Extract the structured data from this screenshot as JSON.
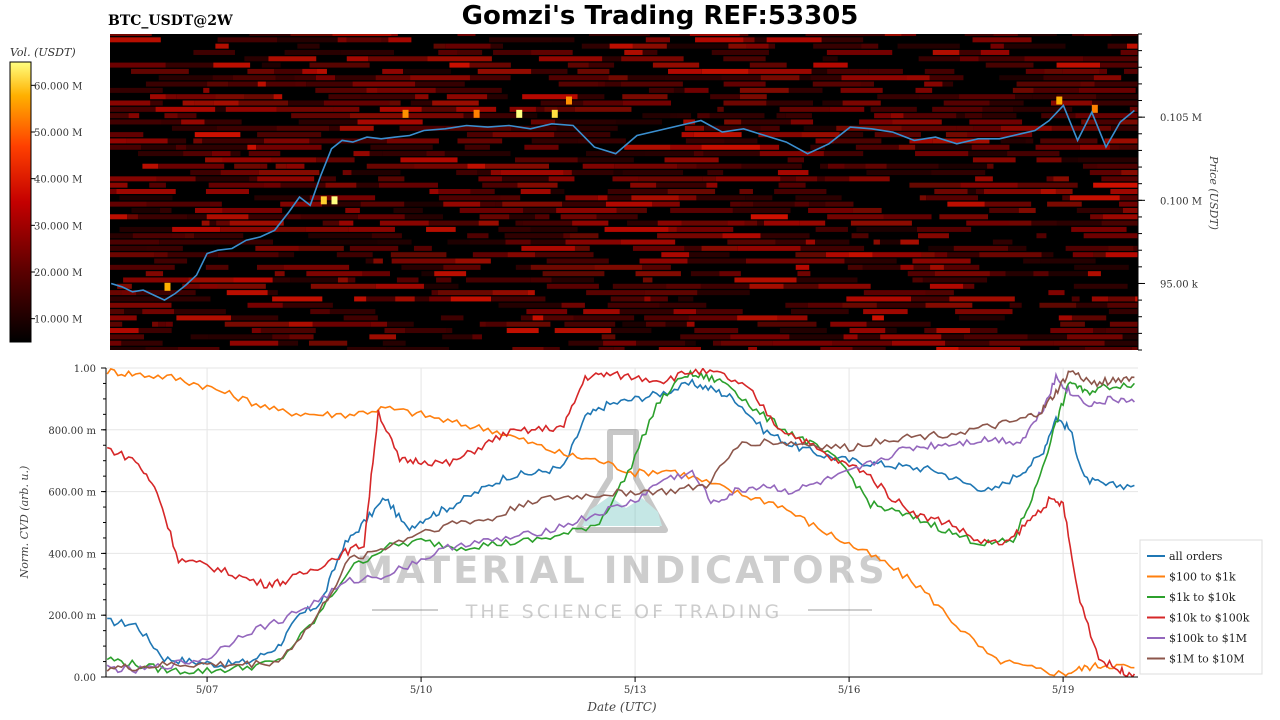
{
  "header": {
    "title": "Gomzi's Trading REF:53305",
    "symbol": "BTC_USDT@2W"
  },
  "watermark": {
    "brand": "MATERIAL INDICATORS",
    "tagline": "THE SCIENCE OF TRADING"
  },
  "colors": {
    "price_line": "#3a8fd0",
    "heatmap_low": "#000000",
    "heatmap_mid": "#c40000",
    "heatmap_high": "#ffff80"
  },
  "chart_data": [
    {
      "type": "heatmap",
      "name": "order-book-heatmap",
      "colorbar_label": "Vol. (USDT)",
      "colorbar_ticks": [
        "10.000 M",
        "20.000 M",
        "30.000 M",
        "40.000 M",
        "50.000 M",
        "60.000 M"
      ],
      "colorbar_tick_values": [
        10,
        20,
        30,
        40,
        50,
        60
      ],
      "colorbar_range": [
        5,
        65
      ],
      "ylabel": "Price (USDT)",
      "y_ticks": [
        "95.00 k",
        "0.100 M",
        "0.105 M"
      ],
      "y_tick_values": [
        95000,
        100000,
        105000
      ],
      "ylim": [
        91000,
        110000
      ],
      "xlim_days": [
        5.583,
        20.05
      ],
      "price_series": {
        "x": [
          5.6,
          5.75,
          5.9,
          6.05,
          6.2,
          6.35,
          6.5,
          6.65,
          6.8,
          6.95,
          7.1,
          7.3,
          7.5,
          7.7,
          7.9,
          8.1,
          8.25,
          8.4,
          8.55,
          8.7,
          8.85,
          9.0,
          9.2,
          9.4,
          9.6,
          9.8,
          10.0,
          10.3,
          10.6,
          10.9,
          11.2,
          11.5,
          11.8,
          12.1,
          12.4,
          12.7,
          13.0,
          13.3,
          13.6,
          13.9,
          14.2,
          14.5,
          14.8,
          15.1,
          15.4,
          15.7,
          16.0,
          16.3,
          16.6,
          16.9,
          17.2,
          17.5,
          17.8,
          18.1,
          18.4,
          18.6,
          18.8,
          19.0,
          19.2,
          19.4,
          19.6,
          19.8,
          20.0
        ],
        "y": [
          95000,
          94800,
          94500,
          94600,
          94300,
          94000,
          94400,
          94900,
          95500,
          96800,
          97000,
          97100,
          97600,
          97800,
          98200,
          99300,
          100200,
          99700,
          101500,
          103100,
          103600,
          103500,
          103800,
          103700,
          103800,
          103900,
          104200,
          104300,
          104500,
          104400,
          104500,
          104300,
          104600,
          104500,
          103200,
          102800,
          103900,
          104200,
          104500,
          104800,
          104100,
          104300,
          103900,
          103500,
          102800,
          103400,
          104400,
          104300,
          104100,
          103600,
          103800,
          103400,
          103700,
          103700,
          104000,
          104200,
          104800,
          105700,
          103600,
          105300,
          103200,
          104700,
          105400
        ]
      }
    },
    {
      "type": "line",
      "name": "normalized-cvd",
      "xlabel": "Date (UTC)",
      "ylabel": "Norm. CVD (arb. u.)",
      "ylim": [
        0,
        1
      ],
      "xlim_days": [
        5.583,
        20.05
      ],
      "x_ticks": [
        "5/07",
        "5/10",
        "5/13",
        "5/16",
        "5/19"
      ],
      "x_tick_values": [
        7,
        10,
        13,
        16,
        19
      ],
      "y_ticks": [
        "0.00",
        "200.00 m",
        "400.00 m",
        "600.00 m",
        "800.00 m",
        "1.00"
      ],
      "y_tick_values": [
        0,
        0.2,
        0.4,
        0.6,
        0.8,
        1.0
      ],
      "legend_position": "bottom-right",
      "grid": true,
      "series": [
        {
          "name": "all orders",
          "color": "#1f77b4",
          "x": [
            5.6,
            6.0,
            6.4,
            6.8,
            7.2,
            7.6,
            8.0,
            8.3,
            8.6,
            8.9,
            9.2,
            9.5,
            9.8,
            10.1,
            10.4,
            10.8,
            11.2,
            11.6,
            12.0,
            12.3,
            12.6,
            13.0,
            13.4,
            13.8,
            14.1,
            14.4,
            14.8,
            15.2,
            15.6,
            16.0,
            16.4,
            16.8,
            17.2,
            17.6,
            18.0,
            18.4,
            18.7,
            18.9,
            19.1,
            19.3,
            19.6,
            20.0
          ],
          "y": [
            0.18,
            0.17,
            0.06,
            0.05,
            0.04,
            0.05,
            0.1,
            0.2,
            0.24,
            0.42,
            0.5,
            0.58,
            0.48,
            0.52,
            0.55,
            0.6,
            0.65,
            0.66,
            0.68,
            0.84,
            0.88,
            0.9,
            0.92,
            0.95,
            0.93,
            0.9,
            0.8,
            0.75,
            0.72,
            0.7,
            0.69,
            0.68,
            0.67,
            0.63,
            0.6,
            0.66,
            0.72,
            0.84,
            0.8,
            0.64,
            0.62,
            0.62
          ]
        },
        {
          "name": "$100 to $1k",
          "color": "#ff7f0e",
          "x": [
            5.6,
            6.0,
            6.5,
            7.0,
            7.5,
            8.0,
            8.5,
            9.0,
            9.5,
            10.0,
            10.5,
            11.0,
            11.5,
            12.0,
            12.5,
            13.0,
            13.5,
            14.0,
            14.5,
            15.0,
            15.5,
            16.0,
            16.5,
            17.0,
            17.5,
            18.0,
            18.5,
            19.0,
            19.3,
            19.6,
            20.0
          ],
          "y": [
            0.99,
            0.98,
            0.97,
            0.94,
            0.9,
            0.86,
            0.85,
            0.85,
            0.87,
            0.85,
            0.82,
            0.8,
            0.76,
            0.72,
            0.7,
            0.66,
            0.67,
            0.63,
            0.59,
            0.56,
            0.49,
            0.43,
            0.37,
            0.29,
            0.17,
            0.06,
            0.03,
            0.01,
            0.03,
            0.04,
            0.03
          ]
        },
        {
          "name": "$1k to $10k",
          "color": "#2ca02c",
          "x": [
            5.6,
            6.0,
            6.5,
            7.0,
            7.5,
            8.0,
            8.5,
            9.0,
            9.5,
            10.0,
            10.5,
            11.0,
            11.5,
            12.0,
            12.5,
            12.9,
            13.3,
            13.7,
            14.0,
            14.3,
            14.7,
            15.1,
            15.5,
            15.9,
            16.3,
            16.7,
            17.1,
            17.5,
            17.9,
            18.3,
            18.6,
            18.9,
            19.1,
            19.3,
            19.6,
            20.0
          ],
          "y": [
            0.06,
            0.04,
            0.02,
            0.02,
            0.03,
            0.05,
            0.18,
            0.35,
            0.42,
            0.44,
            0.42,
            0.43,
            0.44,
            0.46,
            0.5,
            0.66,
            0.88,
            0.98,
            0.97,
            0.95,
            0.86,
            0.8,
            0.75,
            0.69,
            0.56,
            0.53,
            0.5,
            0.46,
            0.43,
            0.44,
            0.6,
            0.82,
            0.96,
            0.92,
            0.94,
            0.95
          ]
        },
        {
          "name": "$10k to $100k",
          "color": "#d62728",
          "x": [
            5.6,
            6.0,
            6.3,
            6.6,
            7.0,
            7.4,
            7.8,
            8.1,
            8.5,
            8.9,
            9.2,
            9.4,
            9.7,
            10.0,
            10.4,
            10.8,
            11.2,
            11.6,
            12.0,
            12.3,
            12.6,
            13.0,
            13.4,
            13.8,
            14.2,
            14.6,
            15.0,
            15.4,
            15.8,
            16.2,
            16.6,
            17.0,
            17.4,
            17.8,
            18.2,
            18.5,
            18.8,
            19.0,
            19.2,
            19.5,
            19.8,
            20.0
          ],
          "y": [
            0.74,
            0.7,
            0.6,
            0.38,
            0.36,
            0.33,
            0.3,
            0.31,
            0.35,
            0.4,
            0.43,
            0.86,
            0.7,
            0.7,
            0.69,
            0.74,
            0.79,
            0.8,
            0.81,
            0.97,
            0.98,
            0.97,
            0.96,
            0.99,
            0.98,
            0.93,
            0.81,
            0.76,
            0.7,
            0.67,
            0.58,
            0.52,
            0.5,
            0.44,
            0.43,
            0.5,
            0.57,
            0.56,
            0.28,
            0.06,
            0.02,
            0.01
          ]
        },
        {
          "name": "$100k to $1M",
          "color": "#9467bd",
          "x": [
            5.6,
            6.0,
            6.5,
            7.0,
            7.5,
            8.0,
            8.5,
            9.0,
            9.5,
            10.0,
            10.5,
            11.0,
            11.5,
            12.0,
            12.5,
            13.0,
            13.4,
            13.8,
            14.1,
            14.4,
            14.8,
            15.2,
            15.6,
            16.0,
            16.4,
            16.8,
            17.2,
            17.6,
            18.0,
            18.4,
            18.7,
            18.9,
            19.1,
            19.4,
            19.7,
            20.0
          ],
          "y": [
            0.03,
            0.02,
            0.04,
            0.06,
            0.14,
            0.18,
            0.24,
            0.31,
            0.33,
            0.38,
            0.43,
            0.44,
            0.46,
            0.49,
            0.53,
            0.57,
            0.64,
            0.66,
            0.56,
            0.6,
            0.62,
            0.6,
            0.63,
            0.66,
            0.7,
            0.74,
            0.75,
            0.76,
            0.77,
            0.76,
            0.86,
            0.97,
            0.92,
            0.88,
            0.9,
            0.89
          ]
        },
        {
          "name": "$1M to $10M",
          "color": "#8c564b",
          "x": [
            5.6,
            6.0,
            6.5,
            7.0,
            7.5,
            8.0,
            8.5,
            9.0,
            9.5,
            10.0,
            10.5,
            11.0,
            11.5,
            12.0,
            12.5,
            13.0,
            13.5,
            14.0,
            14.5,
            15.0,
            15.5,
            16.0,
            16.5,
            17.0,
            17.5,
            18.0,
            18.4,
            18.7,
            18.9,
            19.1,
            19.4,
            19.7,
            20.0
          ],
          "y": [
            0.03,
            0.03,
            0.04,
            0.04,
            0.04,
            0.05,
            0.18,
            0.38,
            0.42,
            0.47,
            0.5,
            0.51,
            0.57,
            0.58,
            0.59,
            0.6,
            0.6,
            0.62,
            0.76,
            0.76,
            0.75,
            0.74,
            0.77,
            0.78,
            0.79,
            0.81,
            0.83,
            0.86,
            0.92,
            0.99,
            0.95,
            0.96,
            0.97
          ]
        }
      ]
    }
  ]
}
